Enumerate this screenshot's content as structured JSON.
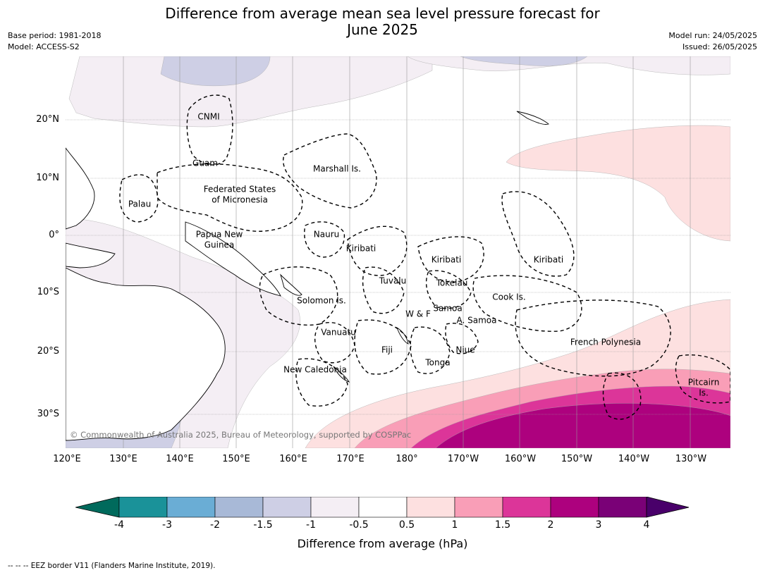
{
  "title_line1": "Difference from average mean sea level pressure forecast for",
  "title_line2": "June 2025",
  "base_period": "Base period: 1981-2018",
  "model": "Model: ACCESS-S2",
  "model_run": "Model run: 24/05/2025",
  "issued": "Issued: 26/05/2025",
  "lat_labels": [
    "20°N",
    "10°N",
    "0°",
    "10°S",
    "20°S",
    "30°S"
  ],
  "lon_labels": [
    "120°E",
    "130°E",
    "140°E",
    "150°E",
    "160°E",
    "170°E",
    "180°",
    "170°W",
    "160°W",
    "150°W",
    "140°W",
    "130°W"
  ],
  "map_labels": {
    "cnmi": "CNMI",
    "guam": "Guam",
    "marshall": "Marshall Is.",
    "fsm_1": "Federated States",
    "fsm_2": "of Micronesia",
    "palau": "Palau",
    "png_1": "Papua New",
    "png_2": "Guinea",
    "nauru": "Nauru",
    "kiribati_w": "Kiribati",
    "kiribati_c": "Kiribati",
    "kiribati_e": "Kiribati",
    "tuvalu": "Tuvalu",
    "tokelau": "Tokelau",
    "cook": "Cook Is.",
    "solomon": "Solomon Is.",
    "samoa": "Samoa",
    "wf": "W & F",
    "asamoa": "A. Samoa",
    "vanuatu": "Vanuatu",
    "fiji": "Fiji",
    "niue": "Niue",
    "tonga": "Tonga",
    "frpoly": "French Polynesia",
    "newcal": "New Caledonia",
    "pitcairn_1": "Pitcairn",
    "pitcairn_2": "Is."
  },
  "copyright": "© Commonwealth of Australia 2025, Bureau of Meteorology, supported by COSPPac",
  "colorbar": {
    "ticks": [
      "-4",
      "-3",
      "-2",
      "-1.5",
      "-1",
      "-0.5",
      "0.5",
      "1",
      "1.5",
      "2",
      "3",
      "4"
    ],
    "colors": [
      "#1a9299",
      "#6aadd5",
      "#a8b9d7",
      "#cecfe5",
      "#f4eef4",
      "#ffffff",
      "#fde0e0",
      "#f99eb7",
      "#dc3599",
      "#ad017e",
      "#7a0177"
    ],
    "under_color": "#006a5c",
    "over_color": "#49006a",
    "label": "Difference from average (hPa)"
  },
  "footnote": "--  --  -- EEZ border V11 (Flanders Marine Institute, 2019)."
}
